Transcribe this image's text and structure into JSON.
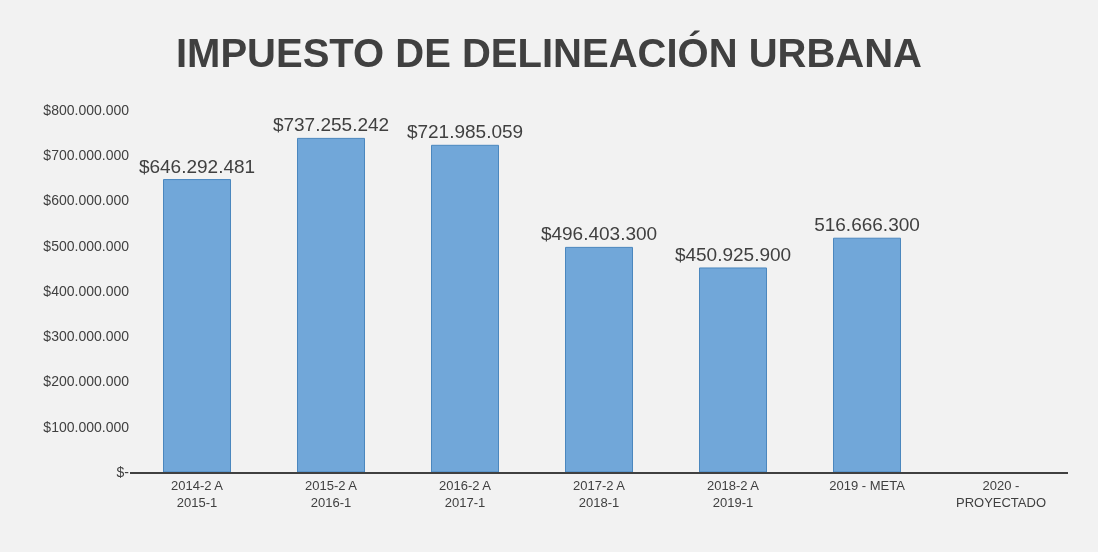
{
  "chart_data": {
    "type": "bar",
    "title": "IMPUESTO DE DELINEACIÓN URBANA",
    "categories": [
      "2014-2 A 2015-1",
      "2015-2 A 2016-1",
      "2016-2 A 2017-1",
      "2017-2 A 2018-1",
      "2018-2 A 2019-1",
      "2019 - META",
      "2020 - PROYECTADO"
    ],
    "values": [
      646292481,
      737255242,
      721985059,
      496403300,
      450925900,
      516666300,
      null
    ],
    "value_labels": [
      "$646.292.481",
      "$737.255.242",
      "$721.985.059",
      "$496.403.300",
      "$450.925.900",
      "516.666.300",
      null
    ],
    "color": "#5b9bd5",
    "ylim": [
      0,
      800000000
    ],
    "yticks": [
      {
        "value": 0,
        "label": "$-"
      },
      {
        "value": 100000000,
        "label": "$100.000.000"
      },
      {
        "value": 200000000,
        "label": "$200.000.000"
      },
      {
        "value": 300000000,
        "label": "$300.000.000"
      },
      {
        "value": 400000000,
        "label": "$400.000.000"
      },
      {
        "value": 500000000,
        "label": "$500.000.000"
      },
      {
        "value": 600000000,
        "label": "$600.000.000"
      },
      {
        "value": 700000000,
        "label": "$700.000.000"
      },
      {
        "value": 800000000,
        "label": "$800.000.000"
      }
    ],
    "grid": false
  }
}
